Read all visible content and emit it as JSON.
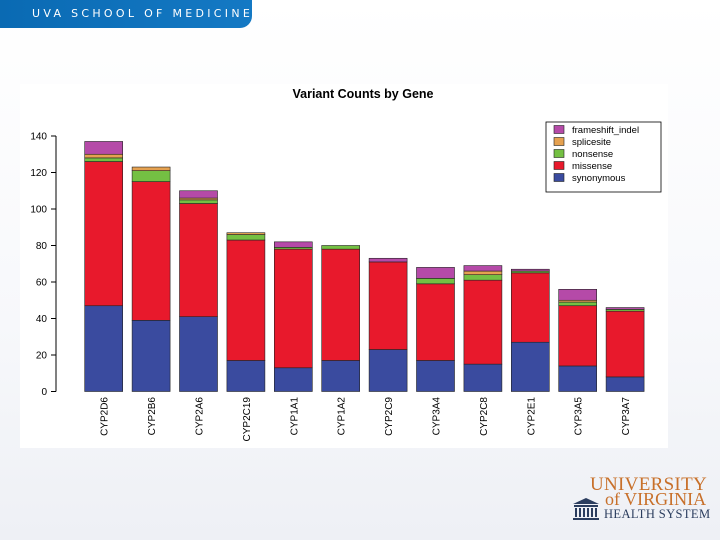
{
  "header": {
    "title": "UVA SCHOOL OF MEDICINE"
  },
  "logo": {
    "line1": "UNIVERSITY",
    "line2": "of VIRGINIA",
    "line3": "HEALTH SYSTEM",
    "icon": "rotunda-icon"
  },
  "colors": {
    "header_blue": "#0a6ab3",
    "frameshift_indel": "#b54aa8",
    "splicesite": "#e5a150",
    "nonsense": "#74c043",
    "missense": "#e8192c",
    "synonymous": "#3a4b9f"
  },
  "chart_data": {
    "type": "bar",
    "stacked": true,
    "title": "Variant Counts by Gene",
    "xlabel": "",
    "ylabel": "",
    "ylim": [
      0,
      140
    ],
    "yticks": [
      "0",
      "20",
      "40",
      "60",
      "80",
      "100",
      "120",
      "140"
    ],
    "categories": [
      "CYP2D6",
      "CYP2B6",
      "CYP2A6",
      "CYP2C19",
      "CYP1A1",
      "CYP1A2",
      "CYP2C9",
      "CYP3A4",
      "CYP2C8",
      "CYP2E1",
      "CYP3A5",
      "CYP3A7"
    ],
    "series": [
      {
        "name": "synonymous",
        "color": "#3a4b9f",
        "values": [
          47,
          39,
          41,
          17,
          13,
          17,
          23,
          17,
          15,
          27,
          14,
          8
        ]
      },
      {
        "name": "missense",
        "color": "#e8192c",
        "values": [
          79,
          76,
          62,
          66,
          65,
          61,
          48,
          42,
          46,
          38,
          33,
          36
        ]
      },
      {
        "name": "nonsense",
        "color": "#74c043",
        "values": [
          2,
          6,
          2,
          3,
          1,
          2,
          0,
          3,
          3,
          1,
          2,
          1
        ]
      },
      {
        "name": "splicesite",
        "color": "#e5a150",
        "values": [
          2,
          2,
          1,
          1,
          0,
          0,
          0,
          0,
          2,
          0,
          1,
          0
        ]
      },
      {
        "name": "frameshift_indel",
        "color": "#b54aa8",
        "values": [
          7,
          0,
          4,
          0,
          3,
          0,
          2,
          6,
          3,
          1,
          6,
          1
        ]
      }
    ],
    "legend": {
      "position": "top-right",
      "entries": [
        "frameshift_indel",
        "splicesite",
        "nonsense",
        "missense",
        "synonymous"
      ]
    }
  }
}
